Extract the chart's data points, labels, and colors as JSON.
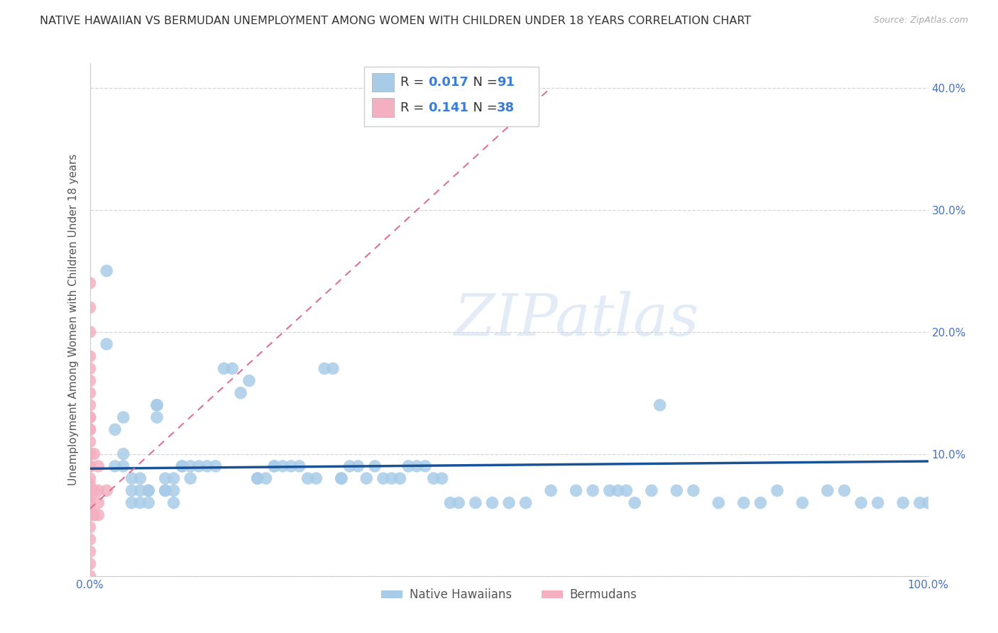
{
  "title": "NATIVE HAWAIIAN VS BERMUDAN UNEMPLOYMENT AMONG WOMEN WITH CHILDREN UNDER 18 YEARS CORRELATION CHART",
  "source": "Source: ZipAtlas.com",
  "ylabel": "Unemployment Among Women with Children Under 18 years",
  "xlim": [
    0.0,
    1.0
  ],
  "ylim": [
    0.0,
    0.42
  ],
  "xticks": [
    0.0,
    0.1,
    0.2,
    0.3,
    0.4,
    0.5,
    0.6,
    0.7,
    0.8,
    0.9,
    1.0
  ],
  "xticklabels": [
    "0.0%",
    "",
    "",
    "",
    "",
    "",
    "",
    "",
    "",
    "",
    "100.0%"
  ],
  "yticks": [
    0.0,
    0.1,
    0.2,
    0.3,
    0.4
  ],
  "yticklabels_right": [
    "",
    "10.0%",
    "20.0%",
    "30.0%",
    "40.0%"
  ],
  "R_hawaiian": 0.017,
  "N_hawaiian": 91,
  "R_bermudan": 0.141,
  "N_bermudan": 38,
  "watermark": "ZIPatlas",
  "hawaiian_color": "#a8cce8",
  "bermudan_color": "#f4afc0",
  "hawaiian_line_color": "#1a5296",
  "bermudan_line_color": "#e07090",
  "hawaiian_x": [
    0.02,
    0.02,
    0.03,
    0.03,
    0.04,
    0.04,
    0.04,
    0.05,
    0.05,
    0.05,
    0.06,
    0.06,
    0.06,
    0.07,
    0.07,
    0.07,
    0.08,
    0.08,
    0.08,
    0.09,
    0.09,
    0.09,
    0.1,
    0.1,
    0.1,
    0.11,
    0.11,
    0.12,
    0.12,
    0.13,
    0.14,
    0.15,
    0.16,
    0.17,
    0.18,
    0.19,
    0.2,
    0.2,
    0.21,
    0.22,
    0.22,
    0.23,
    0.24,
    0.25,
    0.26,
    0.27,
    0.28,
    0.29,
    0.3,
    0.3,
    0.31,
    0.32,
    0.33,
    0.34,
    0.35,
    0.36,
    0.37,
    0.38,
    0.39,
    0.4,
    0.41,
    0.42,
    0.43,
    0.44,
    0.46,
    0.48,
    0.5,
    0.52,
    0.55,
    0.58,
    0.6,
    0.62,
    0.63,
    0.64,
    0.65,
    0.67,
    0.68,
    0.7,
    0.72,
    0.75,
    0.78,
    0.8,
    0.82,
    0.85,
    0.88,
    0.9,
    0.92,
    0.94,
    0.97,
    0.99,
    1.0
  ],
  "hawaiian_y": [
    0.25,
    0.19,
    0.12,
    0.09,
    0.13,
    0.1,
    0.09,
    0.08,
    0.07,
    0.06,
    0.08,
    0.07,
    0.06,
    0.07,
    0.07,
    0.06,
    0.14,
    0.14,
    0.13,
    0.08,
    0.07,
    0.07,
    0.08,
    0.07,
    0.06,
    0.09,
    0.09,
    0.09,
    0.08,
    0.09,
    0.09,
    0.09,
    0.17,
    0.17,
    0.15,
    0.16,
    0.08,
    0.08,
    0.08,
    0.09,
    0.09,
    0.09,
    0.09,
    0.09,
    0.08,
    0.08,
    0.17,
    0.17,
    0.08,
    0.08,
    0.09,
    0.09,
    0.08,
    0.09,
    0.08,
    0.08,
    0.08,
    0.09,
    0.09,
    0.09,
    0.08,
    0.08,
    0.06,
    0.06,
    0.06,
    0.06,
    0.06,
    0.06,
    0.07,
    0.07,
    0.07,
    0.07,
    0.07,
    0.07,
    0.06,
    0.07,
    0.14,
    0.07,
    0.07,
    0.06,
    0.06,
    0.06,
    0.07,
    0.06,
    0.07,
    0.07,
    0.06,
    0.06,
    0.06,
    0.06,
    0.06
  ],
  "bermudan_x": [
    0.0,
    0.0,
    0.0,
    0.0,
    0.0,
    0.0,
    0.0,
    0.0,
    0.0,
    0.0,
    0.0,
    0.0,
    0.0,
    0.0,
    0.0,
    0.0,
    0.0,
    0.0,
    0.0,
    0.0,
    0.0,
    0.0,
    0.0,
    0.0,
    0.0,
    0.0,
    0.0,
    0.0,
    0.0,
    0.0,
    0.005,
    0.005,
    0.005,
    0.01,
    0.01,
    0.01,
    0.01,
    0.02
  ],
  "bermudan_y": [
    0.0,
    0.01,
    0.02,
    0.03,
    0.04,
    0.05,
    0.055,
    0.06,
    0.065,
    0.07,
    0.075,
    0.08,
    0.09,
    0.1,
    0.11,
    0.12,
    0.13,
    0.14,
    0.15,
    0.16,
    0.17,
    0.18,
    0.2,
    0.22,
    0.24,
    0.07,
    0.09,
    0.1,
    0.12,
    0.13,
    0.05,
    0.07,
    0.1,
    0.05,
    0.06,
    0.07,
    0.09,
    0.07
  ],
  "hawaiian_line_y0": 0.088,
  "hawaiian_line_y1": 0.094,
  "bermudan_line_x0": 0.0,
  "bermudan_line_y0": 0.055,
  "bermudan_line_x1": 0.55,
  "bermudan_line_y1": 0.4,
  "background_color": "#ffffff",
  "grid_color": "#cccccc",
  "title_fontsize": 11.5,
  "label_fontsize": 11,
  "tick_color": "#4472c4"
}
